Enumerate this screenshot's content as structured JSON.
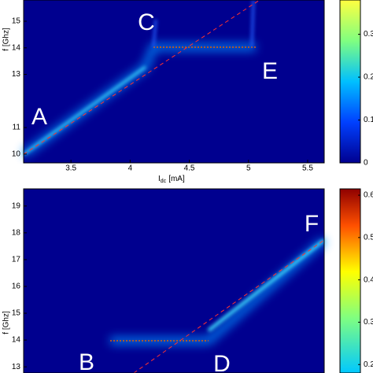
{
  "chart_data": [
    {
      "type": "heatmap",
      "xlabel_main": "I",
      "xlabel_sub": "dc",
      "xlabel_rest": "[mA]",
      "ylabel": "f [Ghz]",
      "xlim": [
        3.1,
        5.64
      ],
      "xticks": [
        3.5,
        4,
        4.5,
        5,
        5.5
      ],
      "ylim": [
        9.67,
        15.8
      ],
      "yticks": [
        10,
        11,
        13,
        14,
        15
      ],
      "clim": [
        0,
        0.38
      ],
      "cticks": [
        0,
        0.1,
        0.2,
        0.3
      ],
      "annotations": [
        "A",
        "C",
        "E"
      ]
    },
    {
      "type": "heatmap",
      "ylabel": "f [Ghz]",
      "xlim": [
        3.1,
        5.64
      ],
      "ylim": [
        12.77,
        19.64
      ],
      "yticks": [
        13,
        14,
        15,
        16,
        17,
        18,
        19
      ],
      "clim": [
        0.18,
        0.615
      ],
      "cticks": [
        0.2,
        0.3,
        0.4,
        0.5,
        0.6
      ],
      "annotations": [
        "B",
        "D",
        "F"
      ]
    }
  ]
}
